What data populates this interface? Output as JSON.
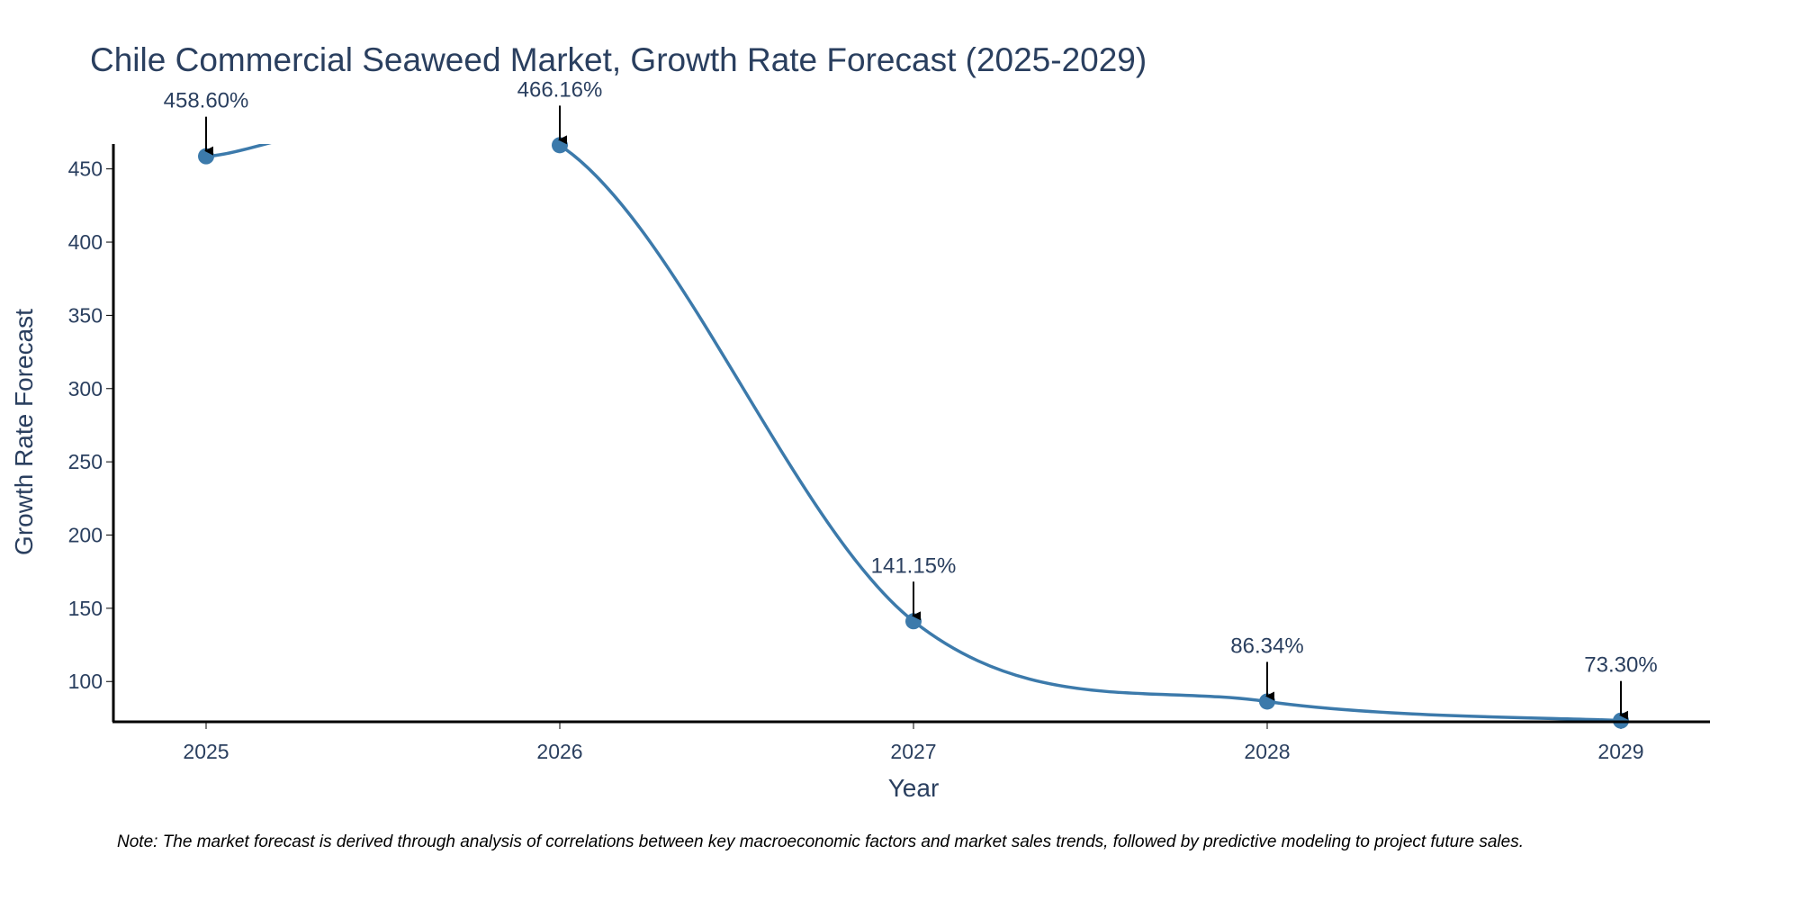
{
  "chart_data": {
    "type": "line",
    "title": "Chile Commercial Seaweed Market, Growth Rate Forecast (2025-2029)",
    "xlabel": "Year",
    "ylabel": "Growth Rate Forecast",
    "categories": [
      "2025",
      "2026",
      "2027",
      "2028",
      "2029"
    ],
    "values": [
      458.6,
      466.16,
      141.15,
      86.34,
      73.3
    ],
    "data_labels": [
      "458.60%",
      "466.16%",
      "141.15%",
      "86.34%",
      "73.30%"
    ],
    "y_ticks": [
      100,
      150,
      200,
      250,
      300,
      350,
      400,
      450
    ],
    "ylim": [
      72.5,
      467
    ],
    "grid": false,
    "legend": "none",
    "line_shape": "spline",
    "line_color": "#3c7aab",
    "marker_color": "#3c7aab",
    "axis_color": "#000000",
    "text_color": "#2a3f5f",
    "note": "Note: The market forecast is derived through analysis of correlations between key macroeconomic factors and market sales trends, followed by predictive modeling to project future sales."
  }
}
